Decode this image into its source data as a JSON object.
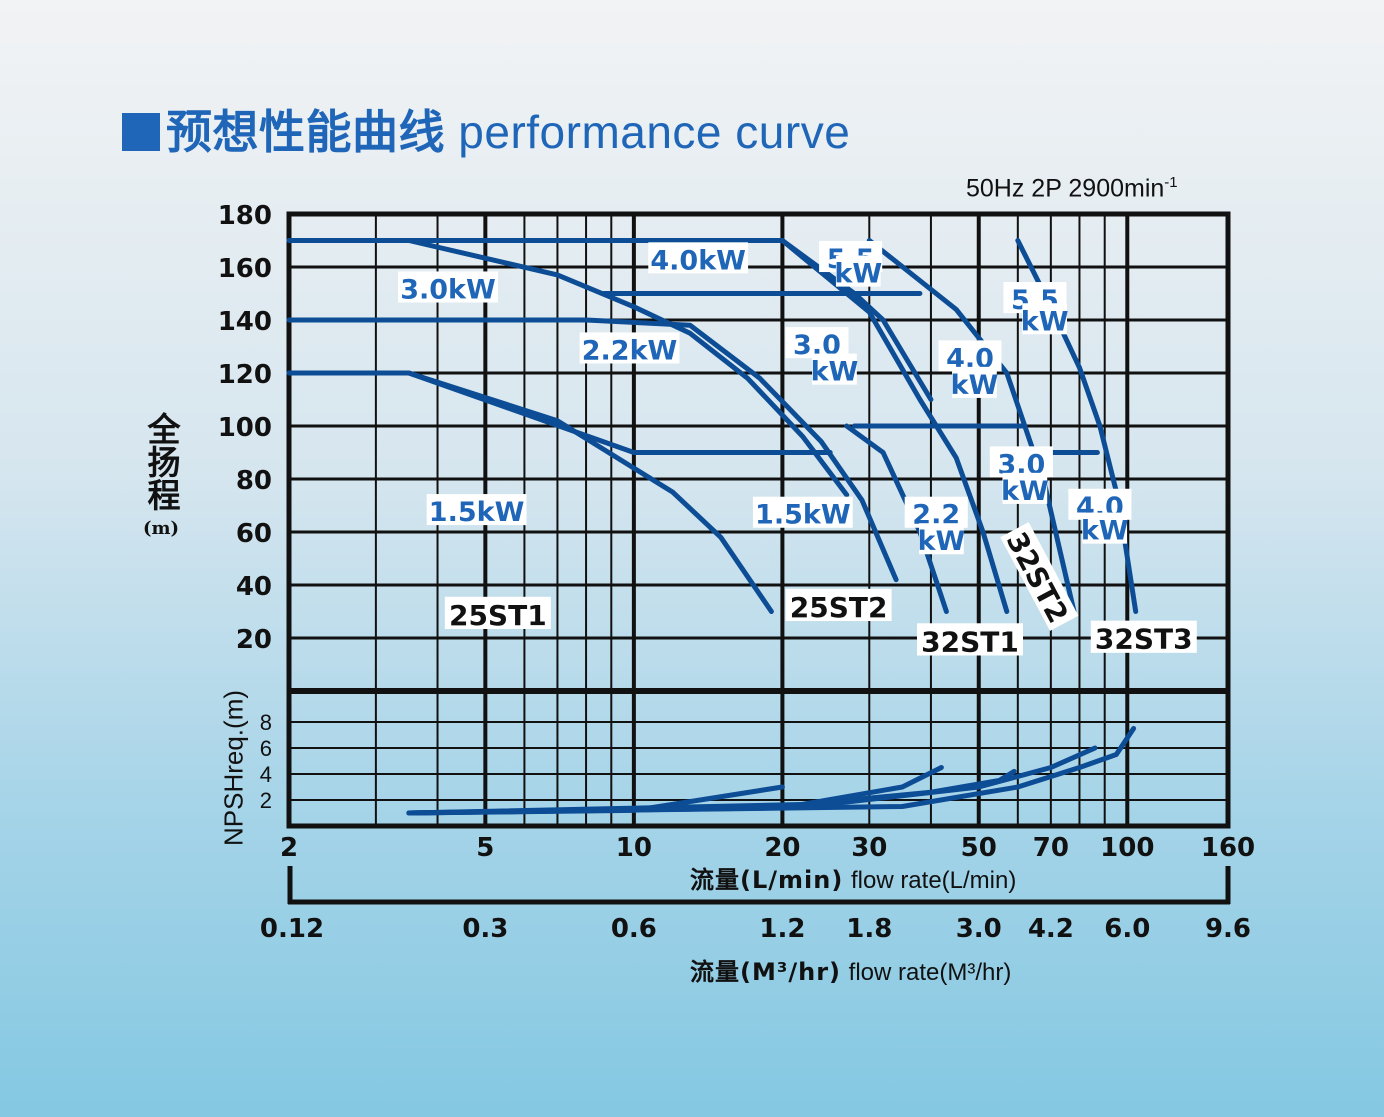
{
  "title": {
    "cn": "预想性能曲线",
    "en": "performance curve"
  },
  "subtitle": {
    "text": "50Hz 2P 2900min",
    "sup": "-1"
  },
  "colors": {
    "curve": "#0d4d95",
    "label": "#1f66b8",
    "grid": "#111111",
    "title": "#1f66b8"
  },
  "chart_data": {
    "type": "line",
    "x_scale": "log",
    "xlabel_cn": "流量(L/min)",
    "xlabel_en": "flow rate(L/min)",
    "xlabel2_cn": "流量(M³/hr)",
    "xlabel2_en": "flow rate(M³/hr)",
    "ylabel_cn": "全扬程",
    "ylabel_unit": "(m)",
    "npsh_label": "NPSHreq.(m)",
    "xlim": [
      2,
      160
    ],
    "ylim": [
      0,
      180
    ],
    "npsh_ylim": [
      0,
      10
    ],
    "x_ticks": [
      2,
      5,
      10,
      20,
      30,
      50,
      70,
      100,
      160
    ],
    "x_tick_labels": [
      "2",
      "5",
      "10",
      "20",
      "30",
      "50",
      "70",
      "100",
      "160"
    ],
    "x2_tick_labels": [
      "0.12",
      "0.3",
      "0.6",
      "1.2",
      "1.8",
      "3.0",
      "4.2",
      "6.0",
      "9.6"
    ],
    "y_ticks": [
      20,
      40,
      60,
      80,
      100,
      120,
      140,
      160,
      180
    ],
    "npsh_ticks": [
      2,
      4,
      6,
      8
    ],
    "grid": true,
    "series": [
      {
        "name": "",
        "group": "25ST1",
        "x": [
          2,
          3.5,
          7,
          12,
          15,
          19
        ],
        "y": [
          120,
          120,
          102,
          75,
          58,
          30
        ]
      },
      {
        "name": "",
        "group": "25ST1",
        "x": [
          3.5,
          10,
          12,
          15,
          20,
          25
        ],
        "y": [
          120,
          90,
          90,
          90,
          90,
          90
        ]
      },
      {
        "name": "",
        "group": "25ST1",
        "x": [
          2,
          8,
          13,
          18,
          24,
          29,
          34
        ],
        "y": [
          140,
          140,
          138,
          118,
          94,
          72,
          42
        ]
      },
      {
        "name": "",
        "group": "25ST1",
        "x": [
          3.5,
          7,
          10,
          13,
          17,
          22,
          27
        ],
        "y": [
          170,
          157,
          145,
          135,
          118,
          96,
          74
        ]
      },
      {
        "name": "",
        "group": "25ST2",
        "x": [
          2,
          20,
          28,
          32,
          40
        ],
        "y": [
          170,
          170,
          150,
          140,
          110
        ]
      },
      {
        "name": "",
        "group": "25ST2",
        "x": [
          27,
          32,
          38,
          43
        ],
        "y": [
          100,
          90,
          60,
          30
        ]
      },
      {
        "name": "",
        "group": "32ST1",
        "x": [
          8.7,
          20,
          34,
          38
        ],
        "y": [
          150,
          150,
          150,
          150
        ]
      },
      {
        "name": "",
        "group": "32ST1",
        "x": [
          20,
          30,
          38,
          45,
          51,
          57
        ],
        "y": [
          170,
          143,
          110,
          88,
          60,
          30
        ]
      },
      {
        "name": "",
        "group": "32ST2",
        "x": [
          28,
          40,
          52,
          58,
          62
        ],
        "y": [
          100,
          100,
          100,
          100,
          100
        ]
      },
      {
        "name": "",
        "group": "32ST2",
        "x": [
          30,
          45,
          57,
          62,
          68,
          78
        ],
        "y": [
          170,
          144,
          120,
          100,
          78,
          30
        ]
      },
      {
        "name": "",
        "group": "32ST3",
        "x": [
          60,
          70,
          87
        ],
        "y": [
          90,
          90,
          90
        ]
      },
      {
        "name": "",
        "group": "32ST3",
        "x": [
          60,
          70,
          80,
          88,
          96,
          104
        ],
        "y": [
          170,
          145,
          122,
          100,
          72,
          30
        ]
      }
    ],
    "npsh_series": [
      {
        "x": [
          3.5,
          10,
          20
        ],
        "y": [
          1,
          1.2,
          3
        ]
      },
      {
        "x": [
          3.5,
          20,
          35,
          42
        ],
        "y": [
          1,
          1.4,
          3,
          4.5
        ]
      },
      {
        "x": [
          3.5,
          20,
          40,
          55,
          59
        ],
        "y": [
          1,
          1.5,
          2.6,
          3.5,
          4.2
        ]
      },
      {
        "x": [
          3.5,
          25,
          50,
          70,
          86
        ],
        "y": [
          1,
          1.7,
          3,
          4.5,
          6
        ]
      },
      {
        "x": [
          3.5,
          35,
          60,
          80,
          95,
          103
        ],
        "y": [
          1,
          1.5,
          3,
          4.5,
          5.5,
          7.5
        ]
      }
    ],
    "annotations": [
      {
        "text": "3.0kW",
        "x": 4.2,
        "y": 152
      },
      {
        "text": "2.2kW",
        "x": 9.8,
        "y": 129
      },
      {
        "text": "1.5kW",
        "x": 4.8,
        "y": 68
      },
      {
        "text": "4.0kW",
        "x": 13.5,
        "y": 163
      },
      {
        "text": "5.5",
        "x": 27.5,
        "y": 163.5
      },
      {
        "text": "kW",
        "x": 28.5,
        "y": 158
      },
      {
        "text": "3.0",
        "x": 23.5,
        "y": 131
      },
      {
        "text": "kW",
        "x": 25.5,
        "y": 121
      },
      {
        "text": "1.5kW",
        "x": 22,
        "y": 67
      },
      {
        "text": "2.2",
        "x": 41,
        "y": 67
      },
      {
        "text": "kW",
        "x": 42,
        "y": 57
      },
      {
        "text": "5.5",
        "x": 65,
        "y": 148
      },
      {
        "text": "kW",
        "x": 68,
        "y": 140
      },
      {
        "text": "4.0",
        "x": 48,
        "y": 126
      },
      {
        "text": "kW",
        "x": 49,
        "y": 116
      },
      {
        "text": "3.0",
        "x": 61,
        "y": 86
      },
      {
        "text": "kW",
        "x": 62,
        "y": 76
      },
      {
        "text": "4.0",
        "x": 88,
        "y": 70
      },
      {
        "text": "kW",
        "x": 90,
        "y": 61
      }
    ],
    "model_labels": [
      {
        "text": "25ST1",
        "x": 5.3,
        "y": 29
      },
      {
        "text": "25ST2",
        "x": 26,
        "y": 32
      },
      {
        "text": "32ST1",
        "x": 48,
        "y": 19
      },
      {
        "text": "32ST2",
        "x": 66,
        "y": 43,
        "rotate": 62
      },
      {
        "text": "32ST3",
        "x": 108,
        "y": 20
      }
    ]
  }
}
